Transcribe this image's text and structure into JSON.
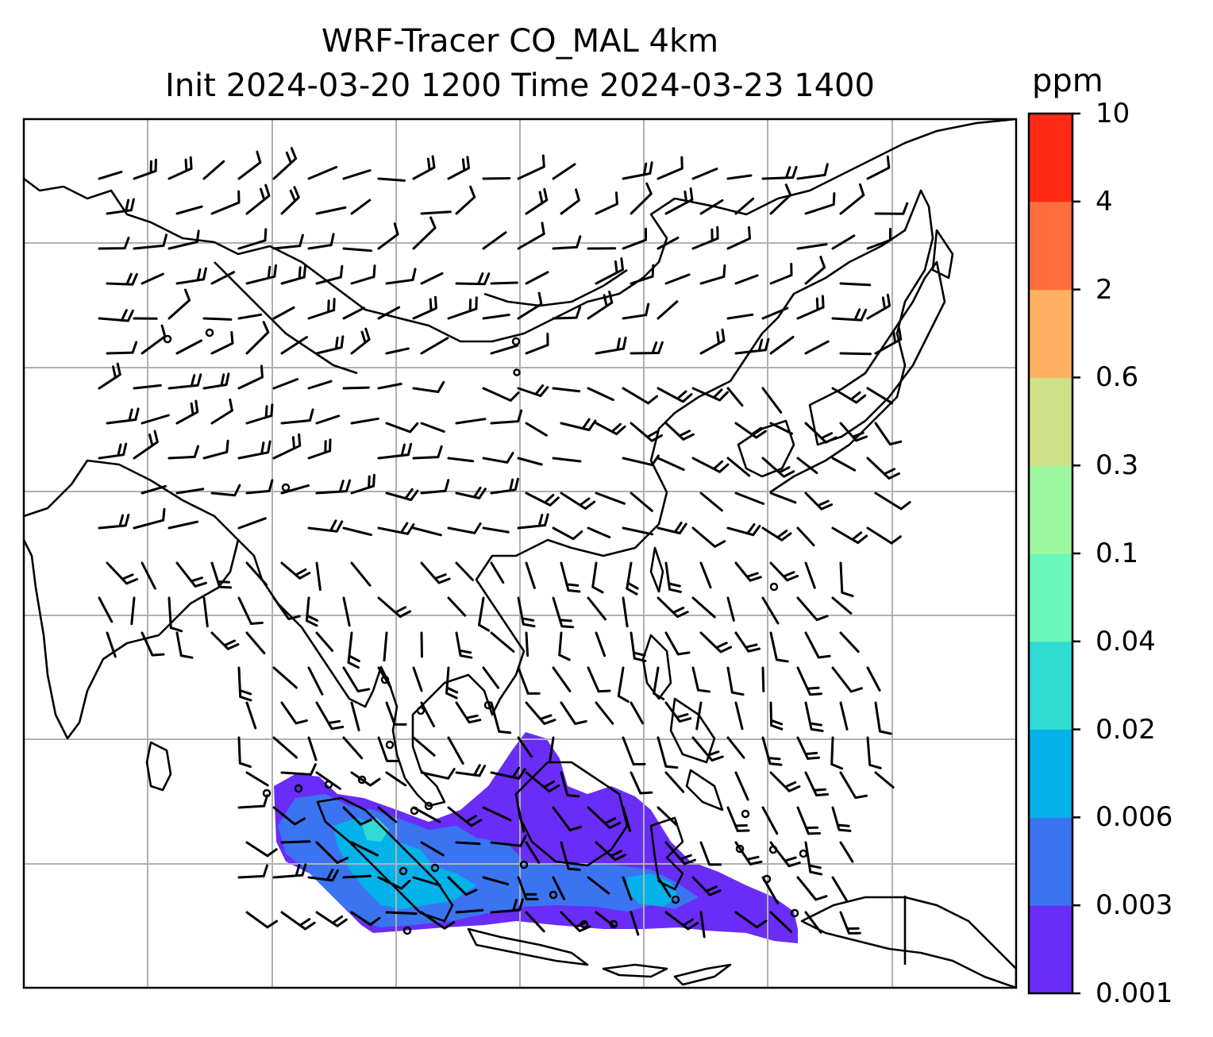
{
  "title_line1": "WRF-Tracer CO_MAL 4km",
  "title_line2": "Init 2024-03-20 1200 Time 2024-03-23 1400",
  "colorbar": {
    "unit": "ppm",
    "levels": [
      "0.001",
      "0.003",
      "0.006",
      "0.02",
      "0.04",
      "0.1",
      "0.3",
      "0.6",
      "2",
      "4",
      "10"
    ],
    "colors": [
      "#6a2cf7",
      "#3a74f1",
      "#04b2ea",
      "#30dbd4",
      "#6af7bd",
      "#9cf89f",
      "#d0e087",
      "#ffb060",
      "#ff6e3d",
      "#ff2a14"
    ]
  },
  "map": {
    "type": "filled contour + wind barbs",
    "field": "CO_MAL tracer concentration",
    "gridlines": true,
    "coastlines": true,
    "country_borders": true
  }
}
